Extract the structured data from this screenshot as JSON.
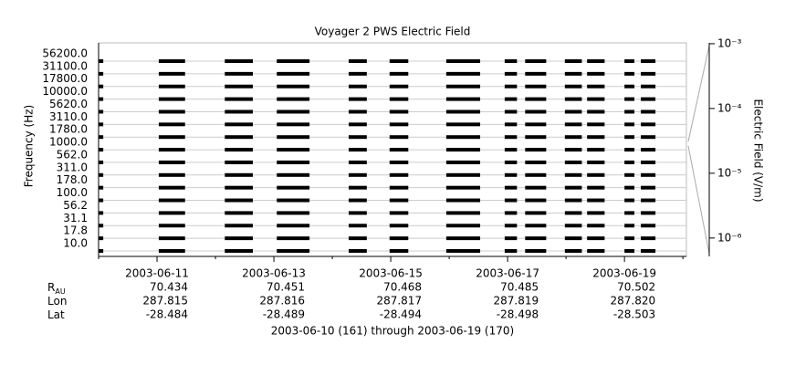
{
  "chart_data": {
    "type": "channel-segments",
    "title": "Voyager 2 PWS Electric Field",
    "ylabel": "Frequency (Hz)",
    "y2label": "Electric Field (V/m)",
    "channels": [
      "56200.0",
      "31100.0",
      "17800.0",
      "10000.0",
      "5620.0",
      "3110.0",
      "1780.0",
      "1000.0",
      "562.0",
      "311.0",
      "178.0",
      "100.0",
      "56.2",
      "31.1",
      "17.8",
      "10.0"
    ],
    "segments": [
      [
        161.0,
        161.08
      ],
      [
        162.03,
        162.48
      ],
      [
        163.16,
        163.64
      ],
      [
        164.05,
        164.61
      ],
      [
        165.28,
        165.59
      ],
      [
        165.98,
        166.3
      ],
      [
        166.95,
        167.53
      ],
      [
        167.95,
        168.16
      ],
      [
        168.3,
        168.66
      ],
      [
        168.98,
        169.27
      ],
      [
        169.36,
        169.66
      ],
      [
        170.0,
        170.17
      ],
      [
        170.28,
        170.53
      ]
    ],
    "color": "#000000",
    "grid": true,
    "xlim": [
      161,
      171.06
    ],
    "xticks": [
      {
        "value": 162,
        "label": "2003-06-11"
      },
      {
        "value": 164,
        "label": "2003-06-13"
      },
      {
        "value": 166,
        "label": "2003-06-15"
      },
      {
        "value": 168,
        "label": "2003-06-17"
      },
      {
        "value": 170,
        "label": "2003-06-19"
      }
    ],
    "xminorticks": [
      161,
      163,
      165,
      167,
      169,
      171
    ],
    "y2scale": "log",
    "y2lim": [
      5.2e-07,
      0.00103
    ],
    "y2ticks": [
      {
        "value": 0.001,
        "label": "10⁻³"
      },
      {
        "value": 0.0001,
        "label": "10⁻⁴"
      },
      {
        "value": 1e-05,
        "label": "10⁻⁵"
      },
      {
        "value": 1e-06,
        "label": "10⁻⁶"
      }
    ],
    "ephemeris": [
      {
        "label": "R",
        "sub": "AU",
        "values": [
          "70.434",
          "70.451",
          "70.468",
          "70.485",
          "70.502"
        ]
      },
      {
        "label": "Lon",
        "values": [
          "287.815",
          "287.816",
          "287.817",
          "287.819",
          "287.820"
        ]
      },
      {
        "label": "Lat",
        "values": [
          "-28.484",
          "-28.489",
          "-28.494",
          "-28.498",
          "-28.503"
        ]
      }
    ],
    "footer": "2003-06-10 (161) through 2003-06-19 (170)"
  }
}
